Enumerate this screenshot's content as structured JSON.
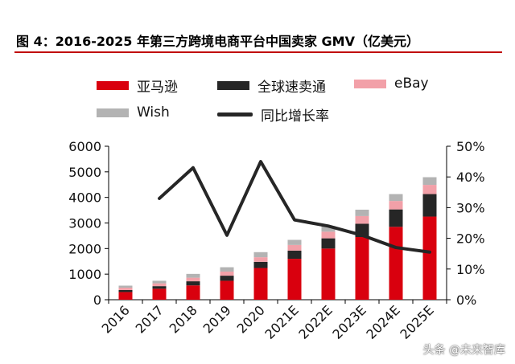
{
  "page": {
    "title": "图 4：2016-2025 年第三方跨境电商平台中国卖家 GMV（亿美元）",
    "watermark": "头条 @未来智库"
  },
  "chart_data": {
    "type": "bar",
    "stacked": true,
    "categories": [
      "2016",
      "2017",
      "2018",
      "2019",
      "2020",
      "2021E",
      "2022E",
      "2023E",
      "2024E",
      "2025E"
    ],
    "series": [
      {
        "name": "亚马逊",
        "color": "#d9000e",
        "axis": "left",
        "values": [
          300,
          430,
          560,
          740,
          1240,
          1600,
          2000,
          2450,
          2850,
          3250
        ]
      },
      {
        "name": "全球速卖通",
        "color": "#262626",
        "axis": "left",
        "values": [
          80,
          100,
          160,
          200,
          240,
          320,
          400,
          520,
          680,
          880
        ]
      },
      {
        "name": "eBay",
        "color": "#f2a0a8",
        "axis": "left",
        "values": [
          90,
          110,
          140,
          160,
          180,
          220,
          260,
          300,
          330,
          360
        ]
      },
      {
        "name": "Wish",
        "color": "#b3b3b3",
        "axis": "left",
        "values": [
          80,
          100,
          150,
          170,
          200,
          200,
          220,
          250,
          270,
          300
        ]
      },
      {
        "name": "同比增长率",
        "type": "line",
        "color": "#262626",
        "axis": "right",
        "values": [
          null,
          0.33,
          0.43,
          0.21,
          0.45,
          0.26,
          0.24,
          0.21,
          0.17,
          0.155
        ]
      }
    ],
    "y_left": {
      "min": 0,
      "max": 6000,
      "ticks": [
        "0",
        "1000",
        "2000",
        "3000",
        "4000",
        "5000",
        "6000"
      ]
    },
    "y_right": {
      "min": 0,
      "max": 0.5,
      "ticks": [
        "0%",
        "10%",
        "20%",
        "30%",
        "40%",
        "50%"
      ]
    },
    "grid": false,
    "legend_position": "top"
  }
}
